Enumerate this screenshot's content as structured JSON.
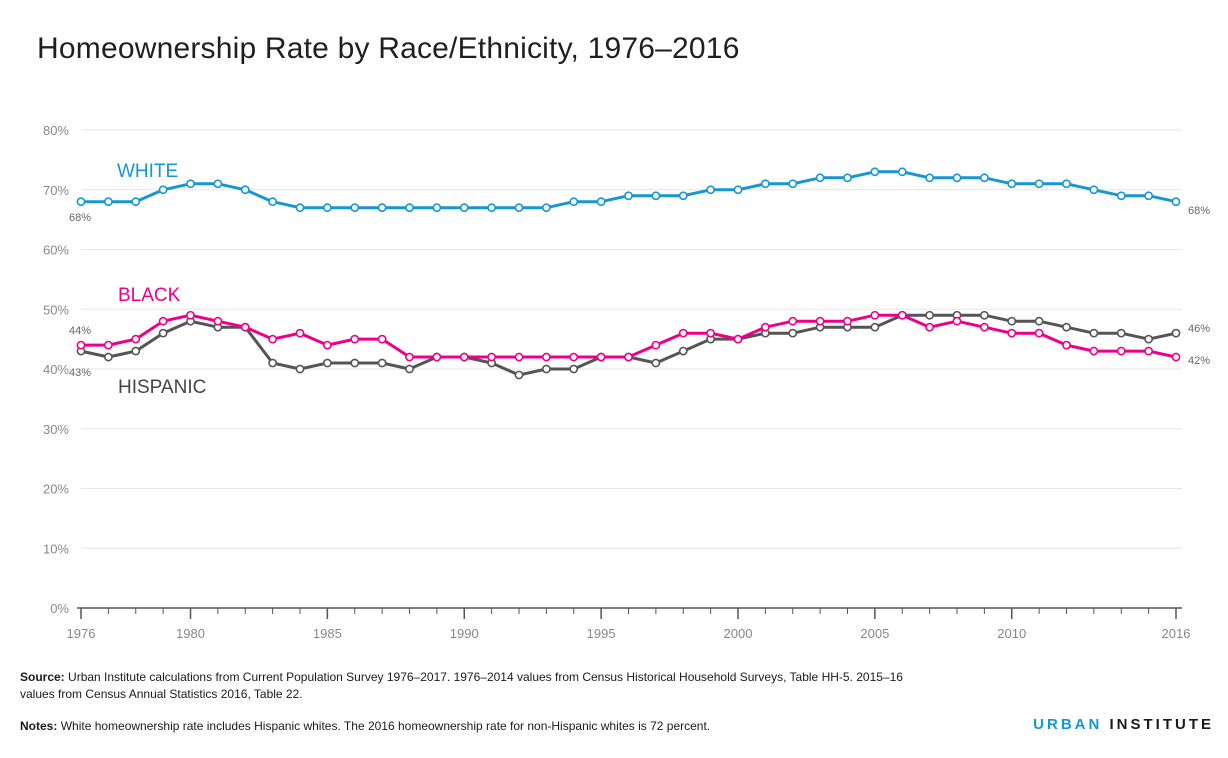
{
  "title": "Homeownership Rate by Race/Ethnicity, 1976–2016",
  "footer": {
    "source_label": "Source:",
    "source_text": "Urban Institute calculations from Current Population Survey 1976–2017. 1976–2014 values from Census Historical Household Surveys, Table HH-5. 2015–16 values from Census Annual Statistics 2016, Table 22.",
    "notes_label": "Notes:",
    "notes_text": "White homeownership rate includes Hispanic whites. The 2016 homeownership rate for non-Hispanic whites is 72 percent.",
    "brand_urban": "URBAN",
    "brand_institute": "INSTITUTE"
  },
  "colors": {
    "white": "#1696d2",
    "black": "#ec008b",
    "hispanic": "#555555",
    "grid": "#e6e6e6",
    "axis": "#555555"
  },
  "chart_data": {
    "type": "line",
    "title": "Homeownership Rate by Race/Ethnicity, 1976–2016",
    "xlim": [
      1976,
      2016
    ],
    "ylim": [
      0,
      80
    ],
    "y_ticks": [
      0,
      10,
      20,
      30,
      40,
      50,
      60,
      70,
      80
    ],
    "y_tick_labels": [
      "0%",
      "10%",
      "20%",
      "30%",
      "40%",
      "50%",
      "60%",
      "70%",
      "80%"
    ],
    "x_ticks": [
      1976,
      1980,
      1985,
      1990,
      1995,
      2000,
      2005,
      2010,
      2016
    ],
    "x_tick_labels": [
      "1976",
      "1980",
      "1985",
      "1990",
      "1995",
      "2000",
      "2005",
      "2010",
      "2016"
    ],
    "grid": true,
    "x": [
      1976,
      1977,
      1978,
      1979,
      1980,
      1981,
      1982,
      1983,
      1984,
      1985,
      1986,
      1987,
      1988,
      1989,
      1990,
      1991,
      1992,
      1993,
      1994,
      1995,
      1996,
      1997,
      1998,
      1999,
      2000,
      2001,
      2002,
      2003,
      2004,
      2005,
      2006,
      2007,
      2008,
      2009,
      2010,
      2011,
      2012,
      2013,
      2014,
      2015,
      2016
    ],
    "series": [
      {
        "name": "WHITE",
        "color_key": "white",
        "start_label": "68%",
        "end_label": "68%",
        "values": [
          68,
          68,
          68,
          70,
          71,
          71,
          70,
          68,
          67,
          67,
          67,
          67,
          67,
          67,
          67,
          67,
          67,
          67,
          68,
          68,
          69,
          69,
          69,
          70,
          70,
          71,
          71,
          72,
          72,
          73,
          73,
          72,
          72,
          72,
          71,
          71,
          71,
          70,
          69,
          69,
          68
        ]
      },
      {
        "name": "BLACK",
        "color_key": "black",
        "start_label": "44%",
        "end_label": "42%",
        "values": [
          44,
          44,
          45,
          48,
          49,
          48,
          47,
          45,
          46,
          44,
          45,
          45,
          42,
          42,
          42,
          42,
          42,
          42,
          42,
          42,
          42,
          44,
          46,
          46,
          45,
          47,
          48,
          48,
          48,
          49,
          49,
          47,
          48,
          47,
          46,
          46,
          44,
          43,
          43,
          43,
          42
        ]
      },
      {
        "name": "HISPANIC",
        "color_key": "hispanic",
        "start_label": "43%",
        "end_label": "46%",
        "values": [
          43,
          42,
          43,
          46,
          48,
          47,
          47,
          41,
          40,
          41,
          41,
          41,
          40,
          42,
          42,
          41,
          39,
          40,
          40,
          42,
          42,
          41,
          43,
          45,
          45,
          46,
          46,
          47,
          47,
          47,
          49,
          49,
          49,
          49,
          48,
          48,
          47,
          46,
          46,
          45,
          46
        ]
      }
    ]
  }
}
